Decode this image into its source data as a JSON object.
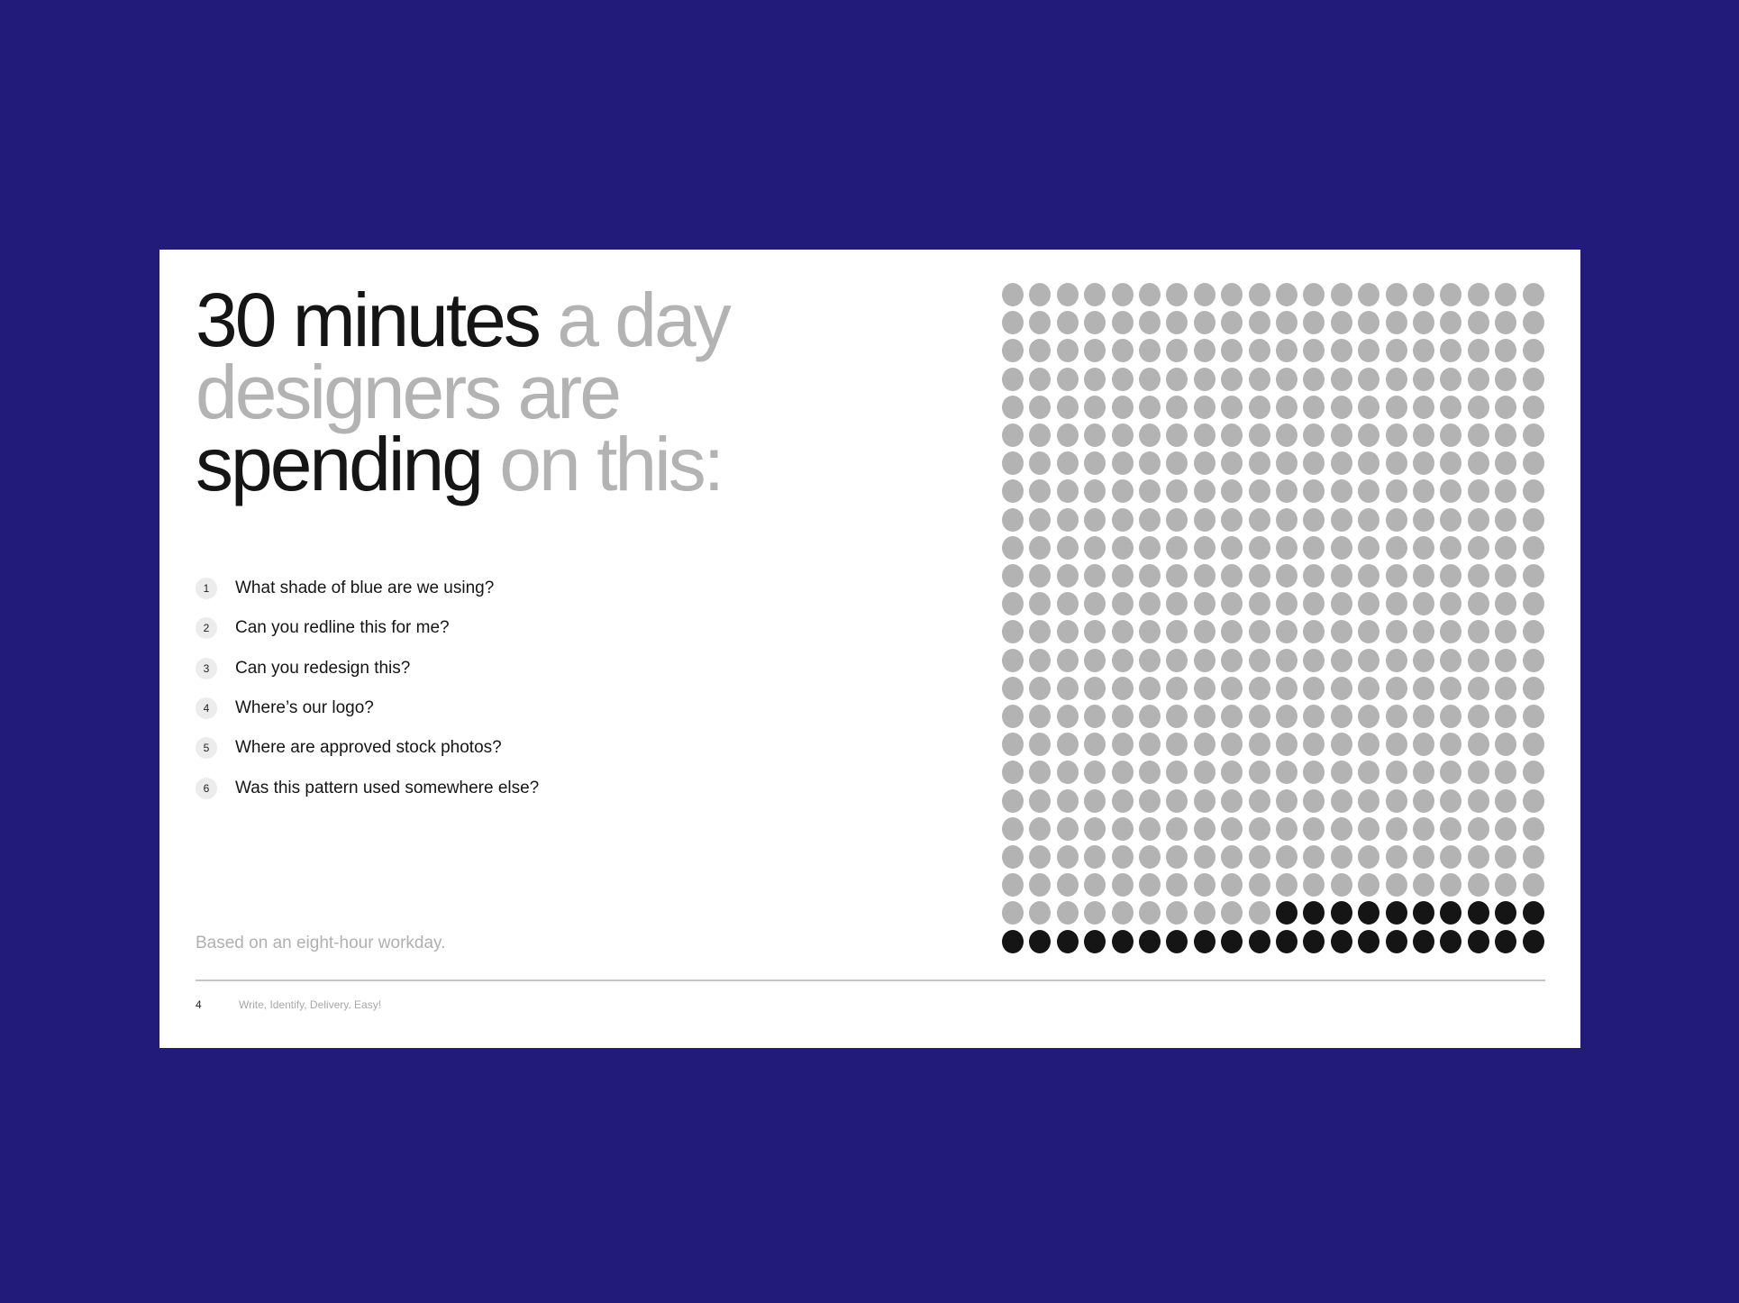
{
  "headline": {
    "part1": "30 minutes",
    "part2": " a day",
    "part3": "designers are",
    "part4": "spending",
    "part5": " on this:"
  },
  "questions": [
    {
      "number": "1",
      "text": "What shade of blue are we using?"
    },
    {
      "number": "2",
      "text": "Can you redline this for me?"
    },
    {
      "number": "3",
      "text": "Can you redesign this?"
    },
    {
      "number": "4",
      "text": "Where’s our logo?"
    },
    {
      "number": "5",
      "text": "Where are approved stock photos?"
    },
    {
      "number": "6",
      "text": "Was this pattern used somewhere else?"
    }
  ],
  "note": "Based on an eight-hour workday.",
  "footer": {
    "page_number": "4",
    "text": "Write, Identify, Delivery. Easy!"
  },
  "colors": {
    "background": "#221b7a",
    "dot_inactive": "#b3b3b3",
    "dot_active": "#151515"
  },
  "chart_data": {
    "type": "waffle",
    "columns": 20,
    "rows": 24,
    "total_units": 480,
    "highlighted_units": 30,
    "unit": "minute",
    "highlight_position": "bottom-right"
  }
}
